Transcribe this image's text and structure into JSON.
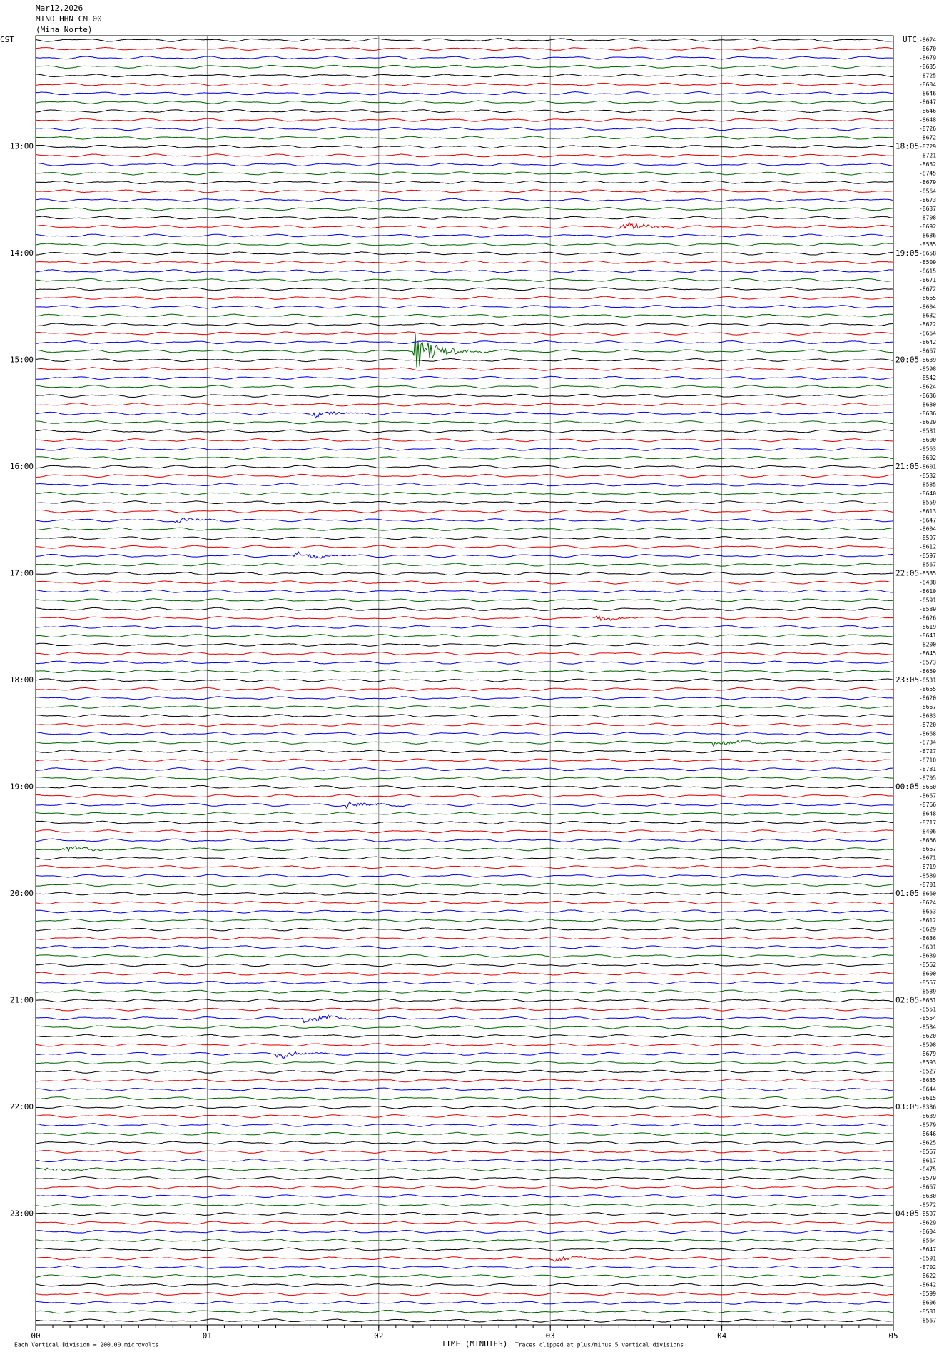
{
  "header": {
    "date": "Mar12,2026",
    "station": "MINO HHN CM 00",
    "location": "(Mina Norte)"
  },
  "left_zone": "CST",
  "right_zone": "UTC",
  "left_times": [
    "13:00",
    "14:00",
    "15:00",
    "16:00",
    "17:00",
    "18:00",
    "19:00",
    "20:00",
    "21:00",
    "22:00",
    "23:00"
  ],
  "right_times": [
    "18:05",
    "19:05",
    "20:05",
    "21:05",
    "22:05",
    "23:05",
    "00:05",
    "01:05",
    "02:05",
    "03:05",
    "04:05"
  ],
  "trace_colors": [
    "#000000",
    "#e00000",
    "#0000e0",
    "#006400"
  ],
  "trace_offsets": [
    -8674,
    -8670,
    -8679,
    -8635,
    -8725,
    -8604,
    -8646,
    -8647,
    -8646,
    -8648,
    -8726,
    -8672,
    -8729,
    -8721,
    -8652,
    -8745,
    -8679,
    -8564,
    -8673,
    -8637,
    -8708,
    -8692,
    -8686,
    -8585,
    -8658,
    -8509,
    -8615,
    -8671,
    -8672,
    -8665,
    -8604,
    -8632,
    -8622,
    -8664,
    -8642,
    -8667,
    -8639,
    -8598,
    -8542,
    -8624,
    -8636,
    -8680,
    -8686,
    -8629,
    -8581,
    -8600,
    -8563,
    -8602,
    -8601,
    -8532,
    -8585,
    -8640,
    -8559,
    -8613,
    -8647,
    -8604,
    -8597,
    -8612,
    -8597,
    -8567,
    -8585,
    -8488,
    -8610,
    -8591,
    -8589,
    -8626,
    -8619,
    -8641,
    -8200,
    -8645,
    -8573,
    -8659,
    -8531,
    -8655,
    -8620,
    -8667,
    -8683,
    -8720,
    -8668,
    -8734,
    -8727,
    -8710,
    -8781,
    -8705,
    -8660,
    -8667,
    -8766,
    -8648,
    -8717,
    -8406,
    -8666,
    -8667,
    -8671,
    -8719,
    -8589,
    -8701,
    -8660,
    -8624,
    -8653,
    -8612,
    -8629,
    -8636,
    -8601,
    -8639,
    -8562,
    -8600,
    -8557,
    -8589,
    -8661,
    -8551,
    -8554,
    -8584,
    -8620,
    -8598,
    -8679,
    -8593,
    -8527,
    -8635,
    -8644,
    -8615,
    -8386,
    -8639,
    -8579,
    -8646,
    -8625,
    -8567,
    -8617,
    -8475,
    -8579,
    -8667,
    -8630,
    -8572,
    -8597,
    -8629,
    -8604,
    -8564,
    -8647,
    -8591,
    -8702,
    -8622,
    -8642,
    -8599,
    -8606,
    -8581,
    -8567
  ],
  "x_ticks": [
    {
      "value": 0,
      "label": "00"
    },
    {
      "value": 1,
      "label": "01"
    },
    {
      "value": 2,
      "label": "02"
    },
    {
      "value": 3,
      "label": "03"
    },
    {
      "value": 4,
      "label": "04"
    },
    {
      "value": 5,
      "label": "05"
    }
  ],
  "x_title": "TIME (MINUTES)",
  "footer_left": "Each Vertical Division =  200.00 microvolts",
  "footer_right": "Traces clipped at plus/minus 5 vertical divisions"
}
